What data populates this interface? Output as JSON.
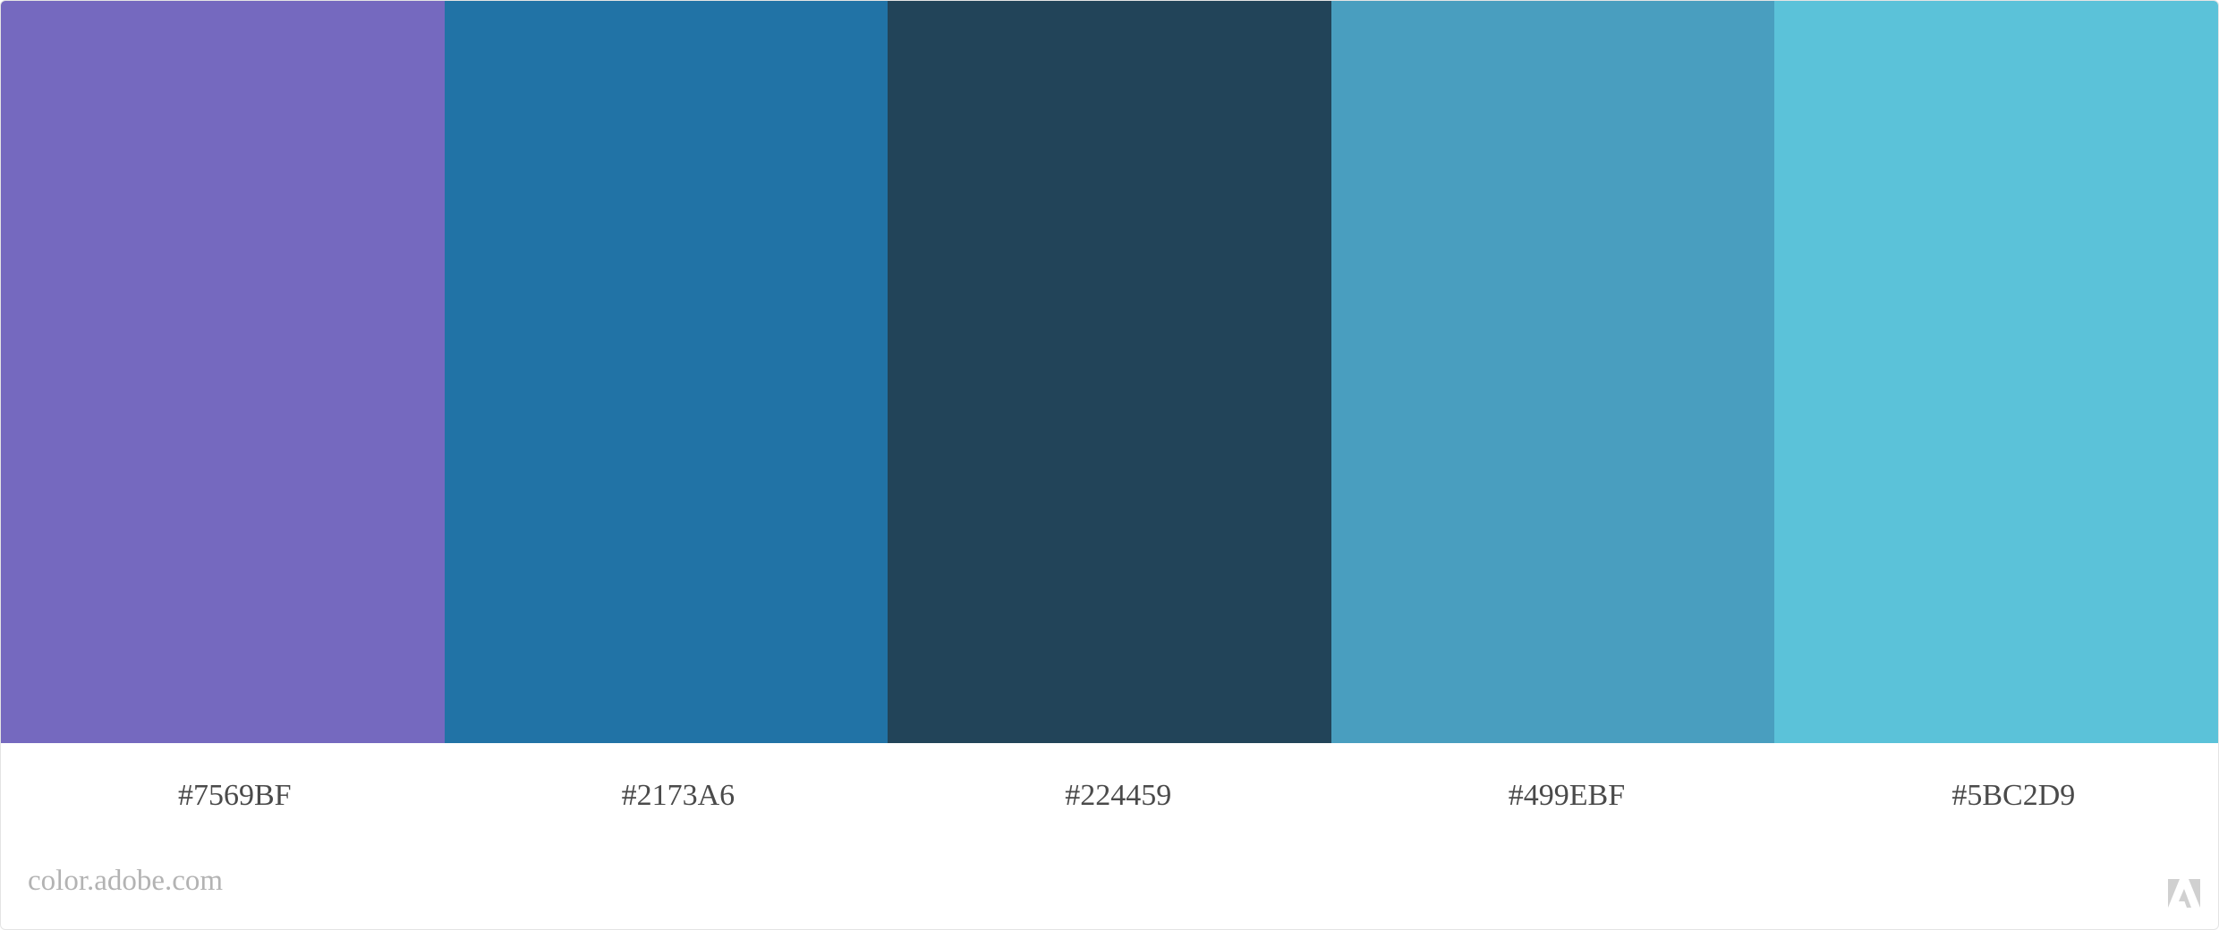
{
  "palette": {
    "swatches": [
      {
        "hex": "#7569BF",
        "color": "#7569BF"
      },
      {
        "hex": "#2173A6",
        "color": "#2173A6"
      },
      {
        "hex": "#224459",
        "color": "#224459"
      },
      {
        "hex": "#499EBF",
        "color": "#499EBF"
      },
      {
        "hex": "#5BC2D9",
        "color": "#5BC2D9"
      }
    ]
  },
  "footer": {
    "site": "color.adobe.com",
    "logo_icon": "adobe-logo-icon"
  }
}
